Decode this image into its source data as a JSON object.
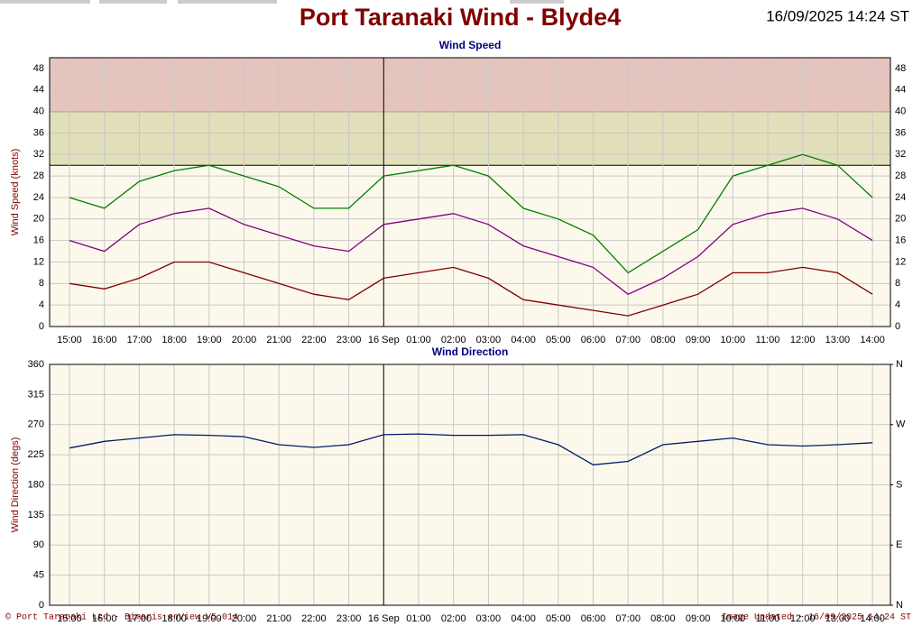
{
  "header": {
    "title": "Port Taranaki Wind - Blyde4",
    "timestamp": "16/09/2025 14:24 ST"
  },
  "footer": {
    "left": "© Port Taranaki Ltd - Bimaris enView V5.014",
    "right": "Image Updated - 16/09/2025 14:24 ST"
  },
  "chart_data": [
    {
      "type": "line",
      "title": "Wind Speed",
      "y_label": "Wind Speed (knots)",
      "categories": [
        "15:00",
        "16:00",
        "17:00",
        "18:00",
        "19:00",
        "20:00",
        "21:00",
        "22:00",
        "23:00",
        "16 Sep",
        "01:00",
        "02:00",
        "03:00",
        "04:00",
        "05:00",
        "06:00",
        "07:00",
        "08:00",
        "09:00",
        "10:00",
        "11:00",
        "12:00",
        "13:00",
        "14:00"
      ],
      "x_marker": "16 Sep",
      "series": [
        {
          "color": "#008000",
          "values": [
            24,
            22,
            27,
            29,
            30,
            28,
            26,
            22,
            22,
            28,
            29,
            30,
            28,
            22,
            20,
            17,
            10,
            14,
            18,
            28,
            30,
            32,
            30,
            24
          ]
        },
        {
          "color": "#800080",
          "values": [
            16,
            14,
            19,
            21,
            22,
            19,
            17,
            15,
            14,
            19,
            20,
            21,
            19,
            15,
            13,
            11,
            6,
            9,
            13,
            19,
            21,
            22,
            20,
            16
          ]
        },
        {
          "color": "#800000",
          "values": [
            8,
            7,
            9,
            12,
            12,
            10,
            8,
            6,
            5,
            9,
            10,
            11,
            9,
            5,
            4,
            3,
            2,
            4,
            6,
            10,
            10,
            11,
            10,
            6
          ]
        }
      ],
      "bands": [
        {
          "from": 30,
          "to": 40,
          "color": "#e2dfbb"
        },
        {
          "from": 40,
          "to": 50,
          "color": "#e5c4bd"
        }
      ],
      "ylim": [
        0,
        50
      ],
      "yticks": [
        0,
        4,
        8,
        12,
        16,
        20,
        24,
        28,
        32,
        36,
        40,
        44,
        48
      ],
      "grid": true
    },
    {
      "type": "line",
      "title": "Wind Direction",
      "y_label": "Wind Direction (degs)",
      "categories": [
        "15:00",
        "16:00",
        "17:00",
        "18:00",
        "19:00",
        "20:00",
        "21:00",
        "22:00",
        "23:00",
        "16 Sep",
        "01:00",
        "02:00",
        "03:00",
        "04:00",
        "05:00",
        "06:00",
        "07:00",
        "08:00",
        "09:00",
        "10:00",
        "11:00",
        "12:00",
        "13:00",
        "14:00"
      ],
      "x_marker": "16 Sep",
      "series": [
        {
          "color": "#001a66",
          "values": [
            235,
            245,
            250,
            255,
            254,
            252,
            240,
            236,
            240,
            255,
            256,
            254,
            254,
            255,
            240,
            210,
            215,
            240,
            245,
            250,
            240,
            238,
            240,
            243
          ]
        }
      ],
      "ylim": [
        0,
        360
      ],
      "yticks": [
        0,
        45,
        90,
        135,
        180,
        225,
        270,
        315,
        360
      ],
      "y2lim": [
        0,
        360
      ],
      "y2ticks": [
        {
          "value": 0,
          "label": "N"
        },
        {
          "value": 90,
          "label": "E"
        },
        {
          "value": 180,
          "label": "S"
        },
        {
          "value": 270,
          "label": "W"
        },
        {
          "value": 360,
          "label": "N"
        }
      ],
      "grid": true
    }
  ]
}
